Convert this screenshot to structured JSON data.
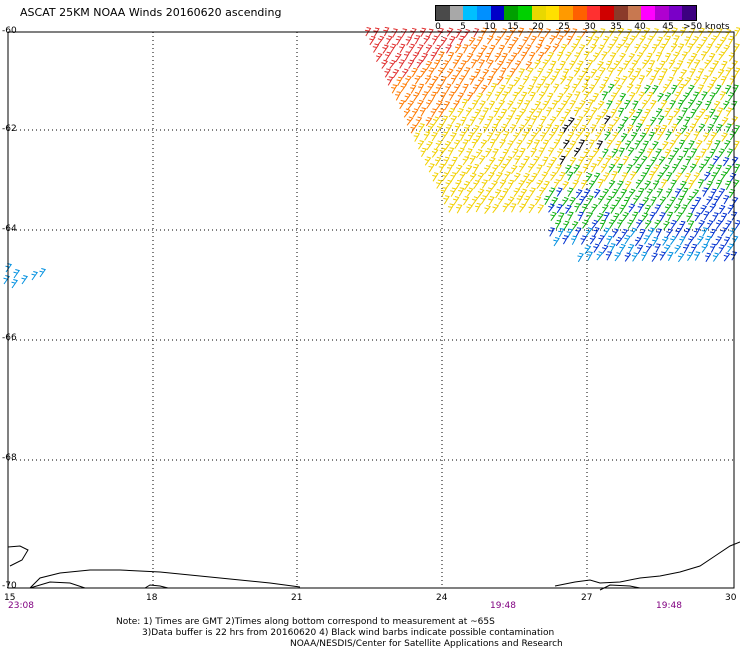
{
  "header": {
    "title": "ASCAT 25KM NOAA Winds 20160620 ascending"
  },
  "legend": {
    "units": "knots",
    "labels": [
      "0",
      "5",
      "10",
      "15",
      "20",
      "25",
      "30",
      "35",
      "40",
      "45",
      ">50 knots"
    ],
    "colors": [
      "#4a4a4a",
      "#a8a8a8",
      "#00c0ff",
      "#0090ff",
      "#0000c8",
      "#00a000",
      "#00d000",
      "#e8d800",
      "#ffe000",
      "#ff9a00",
      "#ff6000",
      "#ff3030",
      "#d00000",
      "#8b3a2a",
      "#c87850",
      "#ff00ff",
      "#b000d0",
      "#7a00c8",
      "#3c0080"
    ]
  },
  "axes": {
    "lat_labels": [
      "-60",
      "-62",
      "-64",
      "-66",
      "-68",
      "-70"
    ],
    "lon_labels": [
      "15",
      "18",
      "21",
      "24",
      "27",
      "30"
    ],
    "times": [
      "23:08",
      "19:48",
      "19:48"
    ]
  },
  "notes": {
    "line1": "Note: 1) Times are GMT 2)Times along bottom correspond to measurement at ~65S",
    "line2": "3)Data buffer is 22 hrs from 20160620 4) Black wind barbs indicate possible contamination",
    "line3": "NOAA/NESDIS/Center for Satellite Applications and Research"
  },
  "map_data": {
    "lon_range": [
      15,
      30
    ],
    "lat_range": [
      -70,
      -60
    ],
    "barb_colors": {
      "red": "#e03030",
      "orange": "#ff7a00",
      "yellow": "#f2d000",
      "green": "#10b010",
      "blue": "#0030d0",
      "cyan": "#0090e0",
      "black": "#000000"
    }
  }
}
